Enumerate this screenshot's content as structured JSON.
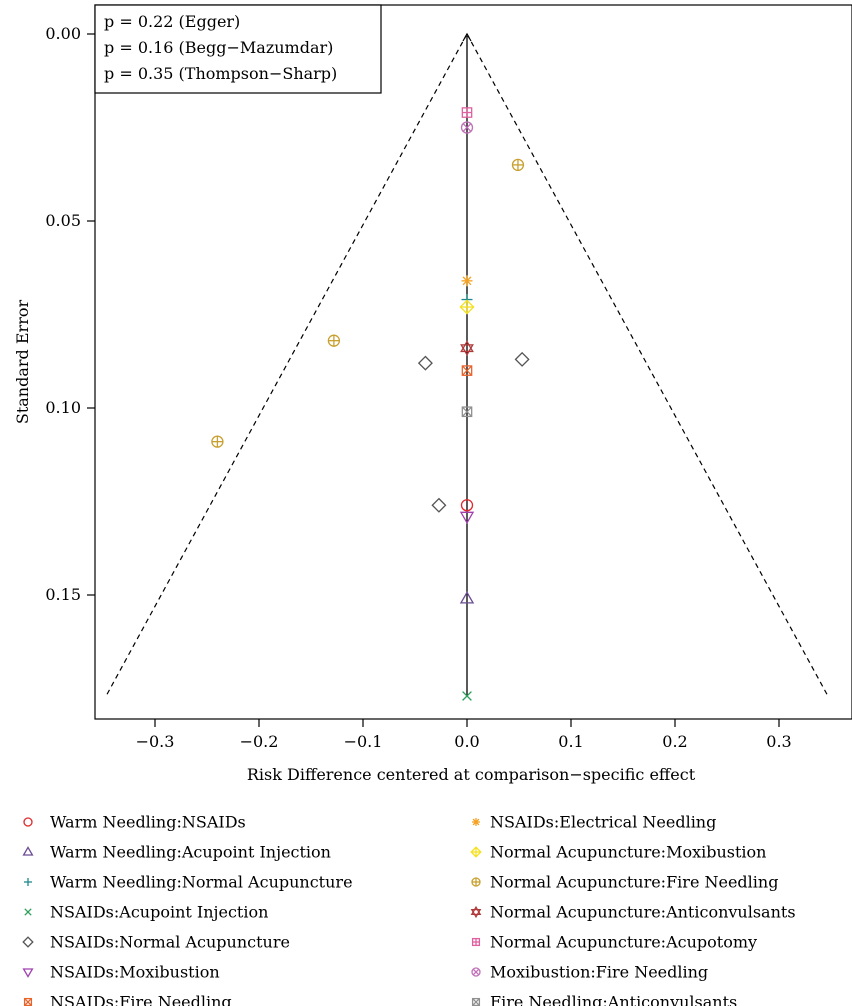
{
  "chart_data": {
    "type": "scatter",
    "title": "",
    "xlabel": "Risk Difference centered at comparison−specific effect",
    "ylabel": "Standard Error",
    "xlim": [
      -0.36,
      0.36
    ],
    "ylim": [
      0.0,
      0.18
    ],
    "y_reversed": true,
    "x_ticks": [
      -0.3,
      -0.2,
      -0.1,
      0.0,
      0.1,
      0.2,
      0.3
    ],
    "x_tick_labels": [
      "−0.3",
      "−0.2",
      "−0.1",
      "0.0",
      "0.1",
      "0.2",
      "0.3"
    ],
    "y_ticks": [
      0.0,
      0.05,
      0.1,
      0.15
    ],
    "y_tick_labels": [
      "0.00",
      "0.05",
      "0.10",
      "0.15"
    ],
    "grid": false,
    "funnel": {
      "apex": [
        0.0,
        0.0
      ],
      "base_se": 0.177,
      "base_x": [
        -0.347,
        0.347
      ]
    },
    "stat_box": [
      "p = 0.22 (Egger)",
      "p = 0.16 (Begg−Mazumdar)",
      "p = 0.35 (Thompson−Sharp)"
    ],
    "legend_placement": "bottom",
    "series": [
      {
        "name": "Warm Needling:NSAIDs",
        "marker": "circle",
        "color": "#e0282c",
        "points": [
          [
            0.0,
            0.126
          ]
        ]
      },
      {
        "name": "Warm Needling:Acupoint Injection",
        "marker": "triangle-up",
        "color": "#6a4c93",
        "points": [
          [
            0.0,
            0.151
          ]
        ]
      },
      {
        "name": "Warm Needling:Normal Acupuncture",
        "marker": "plus",
        "color": "#1f8a8a",
        "points": [
          [
            0.0,
            0.071
          ]
        ]
      },
      {
        "name": "NSAIDs:Acupoint Injection",
        "marker": "cross",
        "color": "#2e9e5b",
        "points": [
          [
            0.0,
            0.177
          ]
        ]
      },
      {
        "name": "NSAIDs:Normal Acupuncture",
        "marker": "diamond",
        "color": "#555555",
        "points": [
          [
            -0.04,
            0.088
          ],
          [
            0.053,
            0.087
          ],
          [
            -0.027,
            0.126
          ]
        ]
      },
      {
        "name": "NSAIDs:Moxibustion",
        "marker": "triangle-down",
        "color": "#a040b0",
        "points": [
          [
            0.0,
            0.129
          ]
        ]
      },
      {
        "name": "NSAIDs:Fire Needling",
        "marker": "square-x",
        "color": "#e8642c",
        "points": [
          [
            0.0,
            0.09
          ]
        ]
      },
      {
        "name": "NSAIDs:Electrical Needling",
        "marker": "asterisk",
        "color": "#f5a020",
        "points": [
          [
            0.0,
            0.066
          ]
        ]
      },
      {
        "name": "Normal Acupuncture:Moxibustion",
        "marker": "diamond-plus",
        "color": "#f5e020",
        "points": [
          [
            0.0,
            0.073
          ]
        ]
      },
      {
        "name": "Normal Acupuncture:Fire Needling",
        "marker": "circle-plus",
        "color": "#c8a030",
        "points": [
          [
            0.049,
            0.035
          ],
          [
            -0.128,
            0.082
          ],
          [
            -0.24,
            0.109
          ]
        ]
      },
      {
        "name": "Normal Acupuncture:Anticonvulsants",
        "marker": "hexagram",
        "color": "#b03838",
        "points": [
          [
            0.0,
            0.084
          ]
        ]
      },
      {
        "name": "Normal Acupuncture:Acupotomy",
        "marker": "square-plus",
        "color": "#e060a0",
        "points": [
          [
            0.0,
            0.021
          ]
        ]
      },
      {
        "name": "Moxibustion:Fire Needling",
        "marker": "circle-x",
        "color": "#c070b8",
        "points": [
          [
            0.0,
            0.025
          ]
        ]
      },
      {
        "name": "Fire Needling:Anticonvulsants",
        "marker": "square-x",
        "color": "#909090",
        "points": [
          [
            0.0,
            0.101
          ]
        ]
      }
    ]
  }
}
